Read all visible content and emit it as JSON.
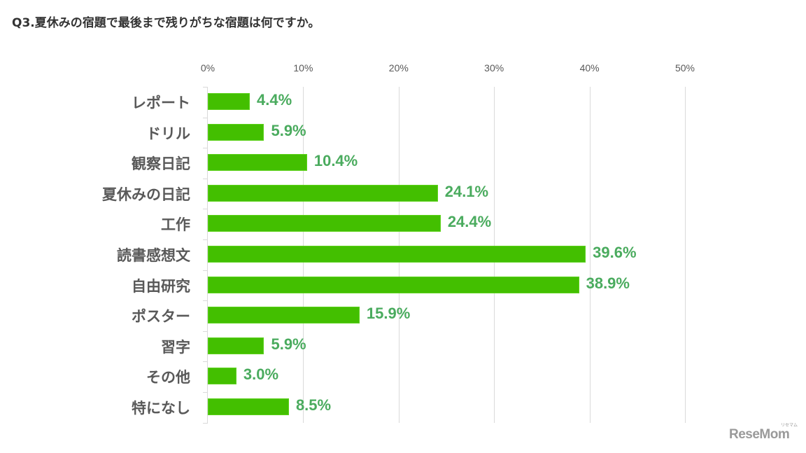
{
  "title": "Q3.夏休みの宿題で最後まで残りがちな宿題は何ですか。",
  "brand": {
    "logo_text": "ReseMom",
    "logo_sub": "リセマム"
  },
  "colors": {
    "bar": "#43bf00",
    "value_label": "#4aab5e",
    "category_label": "#595959",
    "grid": "#d9d9d9"
  },
  "axis": {
    "ticks": [
      "0%",
      "10%",
      "20%",
      "30%",
      "40%",
      "50%"
    ]
  },
  "chart_data": {
    "type": "bar",
    "orientation": "horizontal",
    "title": "Q3.夏休みの宿題で最後まで残りがちな宿題は何ですか。",
    "xlabel": "",
    "ylabel": "",
    "xlim": [
      0,
      50
    ],
    "x_ticks": [
      0,
      10,
      20,
      30,
      40,
      50
    ],
    "x_tick_labels": [
      "0%",
      "10%",
      "20%",
      "30%",
      "40%",
      "50%"
    ],
    "grid": true,
    "legend": "none",
    "categories": [
      "レポート",
      "ドリル",
      "観察日記",
      "夏休みの日記",
      "工作",
      "読書感想文",
      "自由研究",
      "ポスター",
      "習字",
      "その他",
      "特になし"
    ],
    "values": [
      4.4,
      5.9,
      10.4,
      24.1,
      24.4,
      39.6,
      38.9,
      15.9,
      5.9,
      3.0,
      8.5
    ],
    "value_labels": [
      "4.4%",
      "5.9%",
      "10.4%",
      "24.1%",
      "24.4%",
      "39.6%",
      "38.9%",
      "15.9%",
      "5.9%",
      "3.0%",
      "8.5%"
    ]
  }
}
